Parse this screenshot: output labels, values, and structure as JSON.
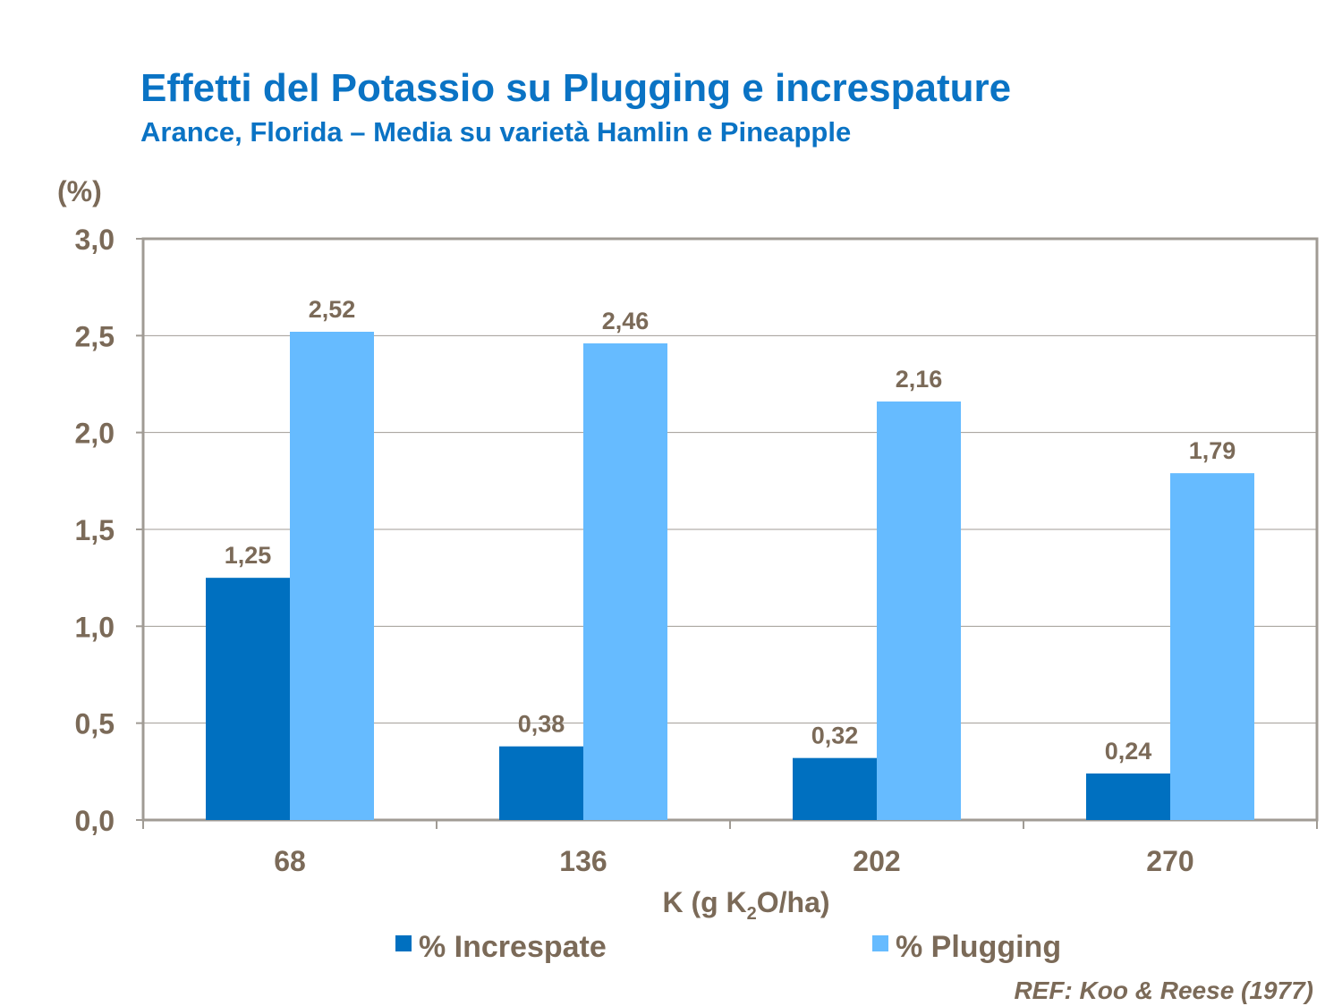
{
  "title": "Effetti del Potassio su Plugging e increspature",
  "subtitle": "Arance, Florida – Media su varietà Hamlin e Pineapple",
  "unit_label": "(%)",
  "reference": "REF: Koo & Reese (1977)",
  "colors": {
    "title": "#0a73c4",
    "text": "#7b6a58",
    "increspate": "#0070c0",
    "plugging": "#66bbff",
    "axis": "#a09b94",
    "grid": "#a09b94"
  },
  "chart_data": {
    "type": "bar",
    "categories": [
      "68",
      "136",
      "202",
      "270"
    ],
    "series": [
      {
        "name": "% Increspate",
        "values": [
          1.25,
          0.38,
          0.32,
          0.24
        ],
        "labels": [
          "1,25",
          "0,38",
          "0,32",
          "0,24"
        ]
      },
      {
        "name": "% Plugging",
        "values": [
          2.52,
          2.46,
          2.16,
          1.79
        ],
        "labels": [
          "2,52",
          "2,46",
          "2,16",
          "1,79"
        ]
      }
    ],
    "xlabel_main": "K (g K",
    "xlabel_sub": "2",
    "xlabel_tail": "O/ha)",
    "ylim": [
      0,
      3
    ],
    "yticks": [
      0,
      0.5,
      1,
      1.5,
      2,
      2.5,
      3
    ],
    "ytick_labels": [
      "0,0",
      "0,5",
      "1,0",
      "1,5",
      "2,0",
      "2,5",
      "3,0"
    ],
    "grid": true,
    "legend_position": "bottom"
  }
}
